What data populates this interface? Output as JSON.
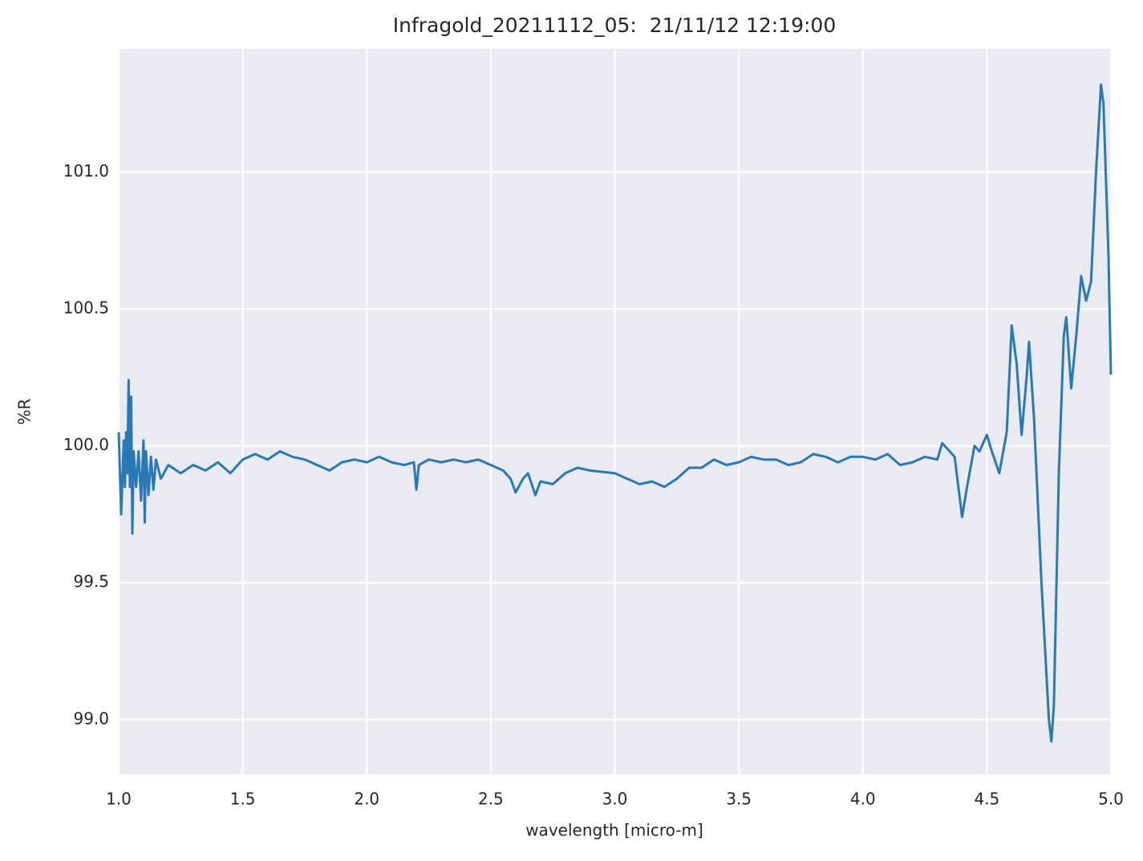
{
  "chart_data": {
    "type": "line",
    "title": "Infragold_20211112_05:  21/11/12 12:19:00",
    "x_label": "wavelength [micro-m]",
    "y_label": "%R",
    "xlim": [
      1.0,
      5.0
    ],
    "ylim": [
      98.8,
      101.45
    ],
    "xticks": [
      {
        "value": 1,
        "label": "1.0"
      },
      1.5,
      {
        "value": 2,
        "label": "2.0"
      },
      2.5,
      {
        "value": 3,
        "label": "3.0"
      },
      3.5,
      {
        "value": 4,
        "label": "4.0"
      },
      4.5,
      {
        "value": 5,
        "label": "5.0"
      }
    ],
    "yticks": [
      {
        "value": 99,
        "label": "99.0"
      },
      99.5,
      {
        "value": 100,
        "label": "100.0"
      },
      100.5,
      {
        "value": 101,
        "label": "101.0"
      }
    ],
    "grid": true,
    "background": "#eaeaf2",
    "series": [
      {
        "color": "#2a78b4",
        "x": [
          1.0,
          1.01,
          1.02,
          1.025,
          1.03,
          1.035,
          1.04,
          1.045,
          1.05,
          1.055,
          1.06,
          1.07,
          1.08,
          1.09,
          1.1,
          1.105,
          1.11,
          1.12,
          1.13,
          1.14,
          1.15,
          1.17,
          1.2,
          1.25,
          1.3,
          1.35,
          1.4,
          1.45,
          1.5,
          1.55,
          1.6,
          1.65,
          1.7,
          1.75,
          1.8,
          1.85,
          1.9,
          1.95,
          2.0,
          2.05,
          2.1,
          2.15,
          2.19,
          2.2,
          2.21,
          2.25,
          2.3,
          2.35,
          2.4,
          2.45,
          2.5,
          2.55,
          2.58,
          2.6,
          2.63,
          2.65,
          2.68,
          2.7,
          2.75,
          2.8,
          2.85,
          2.9,
          3.0,
          3.05,
          3.1,
          3.15,
          3.2,
          3.25,
          3.3,
          3.35,
          3.4,
          3.45,
          3.5,
          3.55,
          3.6,
          3.65,
          3.7,
          3.75,
          3.8,
          3.85,
          3.9,
          3.95,
          4.0,
          4.05,
          4.1,
          4.15,
          4.2,
          4.25,
          4.3,
          4.32,
          4.35,
          4.37,
          4.4,
          4.42,
          4.45,
          4.47,
          4.5,
          4.52,
          4.55,
          4.58,
          4.6,
          4.62,
          4.64,
          4.66,
          4.67,
          4.69,
          4.72,
          4.75,
          4.76,
          4.77,
          4.79,
          4.81,
          4.82,
          4.84,
          4.86,
          4.88,
          4.9,
          4.92,
          4.94,
          4.96,
          4.97,
          4.99,
          5.0
        ],
        "values": [
          100.05,
          99.75,
          100.02,
          99.85,
          100.05,
          99.9,
          100.24,
          99.85,
          100.18,
          99.68,
          99.98,
          99.85,
          99.98,
          99.8,
          100.02,
          99.72,
          99.98,
          99.82,
          99.96,
          99.84,
          99.95,
          99.88,
          99.93,
          99.9,
          99.93,
          99.91,
          99.94,
          99.9,
          99.95,
          99.97,
          99.95,
          99.98,
          99.96,
          99.95,
          99.93,
          99.91,
          99.94,
          99.95,
          99.94,
          99.96,
          99.94,
          99.93,
          99.94,
          99.84,
          99.93,
          99.95,
          99.94,
          99.95,
          99.94,
          99.95,
          99.93,
          99.91,
          99.88,
          99.83,
          99.88,
          99.9,
          99.82,
          99.87,
          99.86,
          99.9,
          99.92,
          99.91,
          99.9,
          99.88,
          99.86,
          99.87,
          99.85,
          99.88,
          99.92,
          99.92,
          99.95,
          99.93,
          99.94,
          99.96,
          99.95,
          99.95,
          99.93,
          99.94,
          99.97,
          99.96,
          99.94,
          99.96,
          99.96,
          99.95,
          99.97,
          99.93,
          99.94,
          99.96,
          99.95,
          100.01,
          99.98,
          99.96,
          99.74,
          99.85,
          100.0,
          99.98,
          100.04,
          99.98,
          99.9,
          100.05,
          100.44,
          100.3,
          100.04,
          100.25,
          100.38,
          100.1,
          99.5,
          99.0,
          98.92,
          99.05,
          99.9,
          100.4,
          100.47,
          100.21,
          100.4,
          100.62,
          100.53,
          100.6,
          101.0,
          101.32,
          101.25,
          100.7,
          100.26
        ]
      }
    ]
  }
}
